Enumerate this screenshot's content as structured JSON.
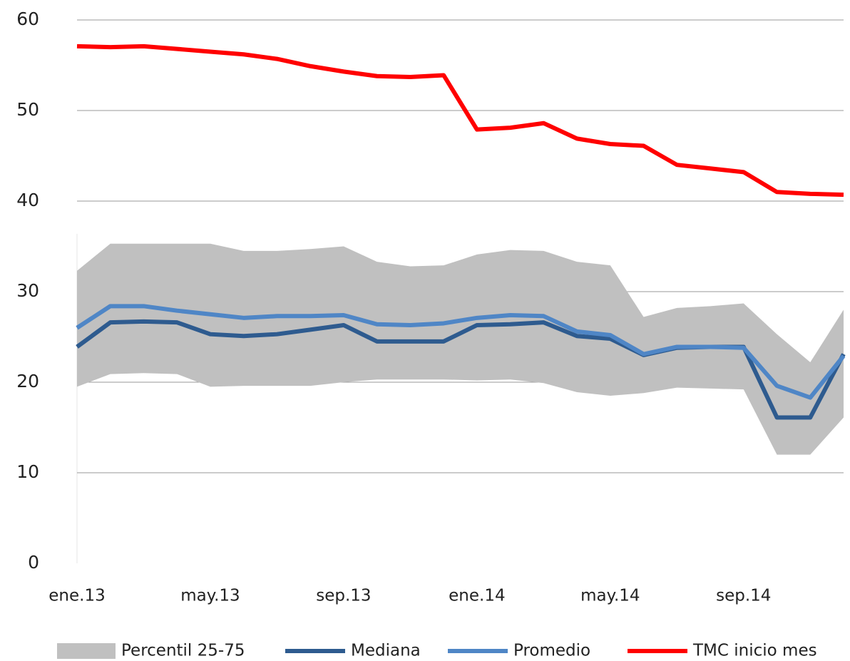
{
  "chart_data": {
    "type": "line",
    "categories": [
      "ene.13",
      null,
      null,
      null,
      "may.13",
      null,
      null,
      null,
      "sep.13",
      null,
      null,
      null,
      "ene.14",
      null,
      null,
      null,
      "may.14",
      null,
      null,
      null,
      "sep.14",
      null,
      null,
      null
    ],
    "ylim": [
      0,
      60
    ],
    "yticks": [
      0,
      10,
      20,
      30,
      40,
      50,
      60
    ],
    "grid": true,
    "series": [
      {
        "name": "Percentil 25-75",
        "color": "#c0c0c0",
        "kind": "band",
        "low": [
          19.5,
          20.9,
          21.0,
          20.9,
          19.5,
          19.6,
          19.6,
          19.6,
          20.0,
          20.3,
          20.3,
          20.3,
          20.2,
          20.3,
          19.9,
          18.9,
          18.5,
          18.8,
          19.4,
          19.3,
          19.2,
          12.0,
          12.0,
          16.1
        ],
        "high": [
          32.3,
          35.3,
          35.3,
          35.3,
          35.3,
          34.5,
          34.5,
          34.7,
          35.0,
          33.3,
          32.8,
          32.9,
          34.1,
          34.6,
          34.5,
          33.3,
          32.9,
          27.2,
          28.2,
          28.4,
          28.7,
          25.3,
          22.2,
          28.0
        ]
      },
      {
        "name": "Mediana",
        "color": "#2e5b8f",
        "values": [
          23.9,
          26.6,
          26.7,
          26.6,
          25.3,
          25.1,
          25.3,
          25.8,
          26.3,
          24.5,
          24.5,
          24.5,
          26.3,
          26.4,
          26.6,
          25.1,
          24.8,
          23.0,
          23.8,
          23.9,
          23.9,
          16.1,
          16.1,
          23.1
        ]
      },
      {
        "name": "Promedio",
        "color": "#4f86c6",
        "values": [
          26.0,
          28.4,
          28.4,
          27.9,
          27.5,
          27.1,
          27.3,
          27.3,
          27.4,
          26.4,
          26.3,
          26.5,
          27.1,
          27.4,
          27.3,
          25.6,
          25.2,
          23.1,
          23.9,
          23.9,
          23.8,
          19.6,
          18.3,
          22.9
        ]
      },
      {
        "name": "TMC inicio mes",
        "color": "#ff0000",
        "values": [
          57.1,
          57.0,
          57.1,
          56.8,
          56.5,
          56.2,
          55.7,
          54.9,
          54.3,
          53.8,
          53.7,
          53.9,
          47.9,
          48.1,
          48.6,
          46.9,
          46.3,
          46.1,
          44.0,
          43.6,
          43.2,
          41.0,
          40.8,
          40.7
        ]
      }
    ]
  }
}
